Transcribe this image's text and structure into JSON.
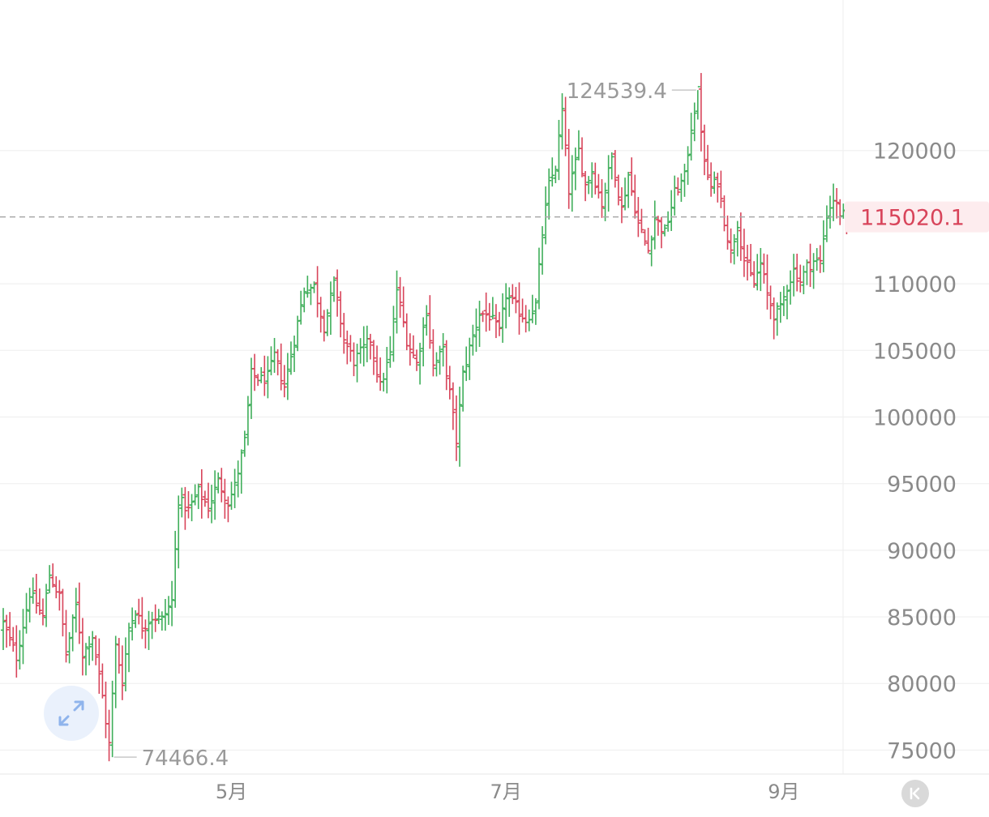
{
  "colors": {
    "up": "#3fae5a",
    "down": "#d8445a",
    "grid": "#f0f0f0",
    "axis_text": "#8a8a8a",
    "current_price": "#d8445a",
    "current_price_bg": "#fdecee",
    "dashed_line": "#a8a8a8",
    "expand_icon": "#8fb4ec",
    "reset_bg": "#d9d9d9"
  },
  "icons": {
    "expand": "expand-arrows-icon",
    "reset": "chevron-left-bar-icon"
  },
  "chart_data": {
    "type": "ohlc",
    "title": "",
    "xlabel": "",
    "ylabel": "",
    "ylim": [
      73200,
      131300
    ],
    "y_ticks": [
      {
        "value": 120000,
        "label": "120000"
      },
      {
        "value": 110000,
        "label": "110000"
      },
      {
        "value": 105000,
        "label": "105000"
      },
      {
        "value": 100000,
        "label": "100000"
      },
      {
        "value": 95000,
        "label": "95000"
      },
      {
        "value": 90000,
        "label": "90000"
      },
      {
        "value": 85000,
        "label": "85000"
      },
      {
        "value": 80000,
        "label": "80000"
      },
      {
        "value": 75000,
        "label": "75000"
      }
    ],
    "x_ticks": [
      {
        "index": 69,
        "label": "5月"
      },
      {
        "index": 152,
        "label": "7月"
      },
      {
        "index": 236,
        "label": "9月"
      }
    ],
    "current_price": {
      "value": 115020.1,
      "label": "115020.1"
    },
    "max_label": {
      "index": 210,
      "value": 124539.4,
      "label": "124539.4"
    },
    "min_label": {
      "index": 33,
      "value": 74466.4,
      "label": "74466.4"
    },
    "grid": "horizontal",
    "anchors": [
      [
        0,
        84500
      ],
      [
        4,
        82000
      ],
      [
        8,
        86800
      ],
      [
        12,
        85000
      ],
      [
        14,
        88200
      ],
      [
        17,
        86500
      ],
      [
        19,
        82200
      ],
      [
        22,
        85800
      ],
      [
        24,
        82200
      ],
      [
        27,
        83600
      ],
      [
        30,
        79000
      ],
      [
        32,
        75400
      ],
      [
        34,
        82800
      ],
      [
        36,
        80200
      ],
      [
        38,
        84200
      ],
      [
        40,
        85500
      ],
      [
        42,
        84200
      ],
      [
        45,
        85000
      ],
      [
        48,
        84800
      ],
      [
        51,
        86200
      ],
      [
        53,
        93800
      ],
      [
        56,
        93000
      ],
      [
        59,
        94400
      ],
      [
        62,
        93200
      ],
      [
        65,
        95200
      ],
      [
        68,
        93600
      ],
      [
        70,
        94800
      ],
      [
        73,
        98200
      ],
      [
        75,
        103200
      ],
      [
        78,
        102800
      ],
      [
        80,
        103000
      ],
      [
        82,
        104600
      ],
      [
        85,
        102300
      ],
      [
        88,
        105800
      ],
      [
        91,
        109600
      ],
      [
        94,
        109800
      ],
      [
        97,
        106800
      ],
      [
        100,
        110000
      ],
      [
        103,
        105800
      ],
      [
        106,
        104200
      ],
      [
        108,
        104800
      ],
      [
        111,
        105800
      ],
      [
        114,
        102300
      ],
      [
        117,
        104700
      ],
      [
        119,
        109600
      ],
      [
        122,
        105800
      ],
      [
        125,
        104000
      ],
      [
        128,
        108000
      ],
      [
        130,
        103800
      ],
      [
        133,
        105000
      ],
      [
        135,
        101800
      ],
      [
        137,
        98200
      ],
      [
        139,
        103200
      ],
      [
        141,
        105200
      ],
      [
        144,
        107800
      ],
      [
        147,
        107600
      ],
      [
        150,
        106300
      ],
      [
        152,
        109200
      ],
      [
        155,
        108200
      ],
      [
        158,
        107300
      ],
      [
        161,
        108400
      ],
      [
        163,
        113800
      ],
      [
        165,
        117400
      ],
      [
        167,
        118800
      ],
      [
        169,
        123000
      ],
      [
        171,
        117000
      ],
      [
        174,
        120000
      ],
      [
        176,
        117400
      ],
      [
        178,
        118500
      ],
      [
        181,
        116000
      ],
      [
        184,
        119500
      ],
      [
        187,
        115600
      ],
      [
        189,
        118200
      ],
      [
        192,
        114500
      ],
      [
        195,
        112500
      ],
      [
        197,
        115000
      ],
      [
        200,
        113800
      ],
      [
        203,
        116800
      ],
      [
        206,
        118000
      ],
      [
        208,
        121800
      ],
      [
        210,
        124400
      ],
      [
        212,
        118900
      ],
      [
        214,
        117200
      ],
      [
        216,
        117700
      ],
      [
        218,
        114800
      ],
      [
        220,
        112300
      ],
      [
        222,
        114600
      ],
      [
        224,
        111800
      ],
      [
        227,
        110000
      ],
      [
        229,
        111500
      ],
      [
        231,
        109200
      ],
      [
        233,
        107700
      ],
      [
        235,
        108100
      ],
      [
        237,
        109800
      ],
      [
        239,
        111000
      ],
      [
        241,
        110200
      ],
      [
        243,
        111300
      ],
      [
        245,
        111700
      ],
      [
        247,
        111600
      ],
      [
        249,
        115200
      ],
      [
        251,
        116400
      ],
      [
        253,
        115300
      ],
      [
        255,
        115020
      ]
    ]
  }
}
